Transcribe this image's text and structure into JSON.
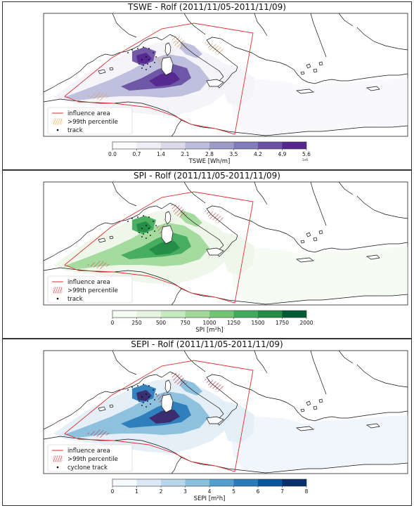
{
  "chart_data": [
    {
      "type": "heatmap",
      "title": "TSWE - Rolf (2011/11/05-2011/11/09)",
      "colorbar": {
        "label": "TSWE [Wh/m]",
        "ticks": [
          "0.0",
          "0.7",
          "1.4",
          "2.1",
          "2.8",
          "3.5",
          "4.2",
          "4.9",
          "5.6"
        ],
        "tick_suffix": "1e6",
        "range": [
          0.0,
          5.6
        ],
        "colors": [
          "#fcfbfd",
          "#efedf5",
          "#dadaeb",
          "#bcbddc",
          "#9e9ac8",
          "#807dba",
          "#6a51a3",
          "#54278f"
        ]
      },
      "legend": {
        "position": "lower-left",
        "items": [
          {
            "label": "influence area",
            "kind": "line",
            "color": "#e03030"
          },
          {
            "label": ">99th percentile",
            "kind": "hatch",
            "color": "#f0b060"
          },
          {
            "label": "track",
            "kind": "dot",
            "color": "#000000"
          }
        ]
      },
      "map_colors": {
        "low": "#f4f3f9",
        "mid": "#bcbddc",
        "high": "#6a51a3",
        "max": "#54278f",
        "hatch": "#d9a066"
      }
    },
    {
      "type": "heatmap",
      "title": "SPI - Rolf (2011/11/05-2011/11/09)",
      "colorbar": {
        "label": "SPI [m²h]",
        "ticks": [
          "0",
          "250",
          "500",
          "750",
          "1000",
          "1250",
          "1500",
          "1750",
          "2000"
        ],
        "tick_suffix": "",
        "range": [
          0,
          2000
        ],
        "colors": [
          "#f7fcf5",
          "#e5f5e0",
          "#c7e9c0",
          "#a1d99b",
          "#74c476",
          "#41ab5d",
          "#238b45",
          "#005a32"
        ]
      },
      "legend": {
        "position": "lower-left",
        "items": [
          {
            "label": "influence area",
            "kind": "line",
            "color": "#e03030"
          },
          {
            "label": ">99th percentile",
            "kind": "hatch",
            "color": "#e05050"
          },
          {
            "label": "track",
            "kind": "dot",
            "color": "#000000"
          }
        ]
      },
      "map_colors": {
        "low": "#eef7ea",
        "mid": "#a1d99b",
        "high": "#41ab5d",
        "max": "#238b45",
        "hatch": "#c86060"
      }
    },
    {
      "type": "heatmap",
      "title": "SEPI - Rolf (2011/11/05-2011/11/09)",
      "colorbar": {
        "label": "SEPI [m²h]",
        "ticks": [
          "0",
          "1",
          "2",
          "3",
          "4",
          "5",
          "6",
          "7",
          "8"
        ],
        "tick_suffix": "",
        "range": [
          0,
          8
        ],
        "colors": [
          "#f7fbff",
          "#dbe9f6",
          "#bad6eb",
          "#89bedc",
          "#539ecd",
          "#2b7bba",
          "#0b559f",
          "#08306b"
        ]
      },
      "legend": {
        "position": "lower-left",
        "items": [
          {
            "label": "influence area",
            "kind": "line",
            "color": "#e03030"
          },
          {
            "label": ">99th percentile",
            "kind": "hatch",
            "color": "#e05050"
          },
          {
            "label": "cyclone track",
            "kind": "dot",
            "color": "#000000"
          }
        ]
      },
      "map_colors": {
        "low": "#e3eef8",
        "mid": "#89bedc",
        "high": "#2b7bba",
        "max": "#3b2a6b",
        "hatch": "#c04050"
      }
    }
  ]
}
